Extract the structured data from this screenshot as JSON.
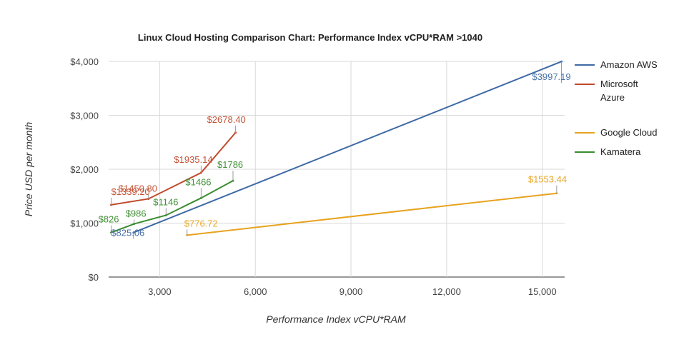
{
  "chart_data": {
    "type": "line",
    "title": "Linux Cloud Hosting Comparison Chart: Performance Index vCPU*RAM >1040",
    "xlabel": "Performance Index vCPU*RAM",
    "ylabel": "Price USD per month",
    "xlim": [
      1400,
      15700
    ],
    "ylim": [
      0,
      4000
    ],
    "x_ticks": [
      3000,
      6000,
      9000,
      12000,
      15000
    ],
    "x_tick_labels": [
      "3,000",
      "6,000",
      "9,000",
      "12,000",
      "15,000"
    ],
    "y_ticks": [
      0,
      1000,
      2000,
      3000,
      4000
    ],
    "y_tick_labels": [
      "$0",
      "$1,000",
      "$2,000",
      "$3,000",
      "$4,000"
    ],
    "grid": true,
    "legend_position": "right",
    "series": [
      {
        "name": "Amazon AWS",
        "color": "#3e6aa6",
        "points": [
          {
            "x": 2180,
            "y": 825.06,
            "label": "$825.06"
          },
          {
            "x": 15600,
            "y": 3997.19,
            "label": "$3997.19"
          }
        ]
      },
      {
        "name": "Microsoft Azure",
        "color": "#c04a2c",
        "points": [
          {
            "x": 1480,
            "y": 1339.2,
            "label": "$1339.20"
          },
          {
            "x": 2650,
            "y": 1450.8,
            "label": "$1450.80"
          },
          {
            "x": 4300,
            "y": 1935.14,
            "label": "$1935.14"
          },
          {
            "x": 5380,
            "y": 2678.4,
            "label": "$2678.40"
          }
        ]
      },
      {
        "name": "Google Cloud",
        "color": "#e8a21f",
        "points": [
          {
            "x": 3860,
            "y": 776.72,
            "label": "$776.72"
          },
          {
            "x": 15450,
            "y": 1553.44,
            "label": "$1553.44"
          }
        ]
      },
      {
        "name": "Kamatera",
        "color": "#3a8c2e",
        "points": [
          {
            "x": 1480,
            "y": 826,
            "label": "$826"
          },
          {
            "x": 2200,
            "y": 986,
            "label": "$986"
          },
          {
            "x": 3200,
            "y": 1146,
            "label": "$1146"
          },
          {
            "x": 4300,
            "y": 1466,
            "label": "$1466"
          },
          {
            "x": 5300,
            "y": 1786,
            "label": "$1786"
          }
        ]
      }
    ],
    "legend_lines": [
      [
        "Amazon AWS"
      ],
      [
        "Microsoft",
        "Azure"
      ],
      [
        "Google Cloud"
      ],
      [
        "Kamatera"
      ]
    ]
  }
}
